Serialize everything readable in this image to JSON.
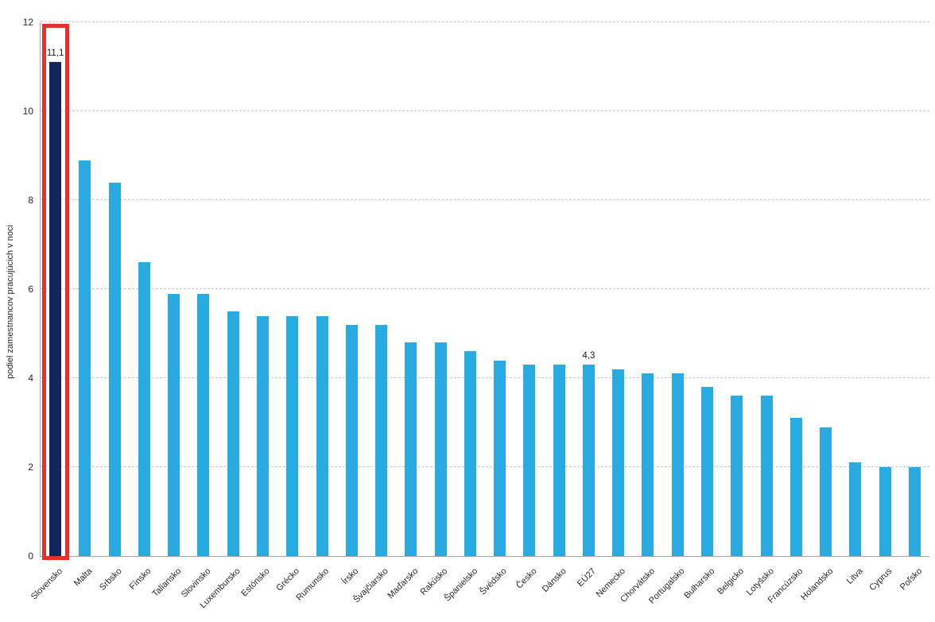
{
  "chart_data": {
    "type": "bar",
    "title": "",
    "xlabel": "",
    "ylabel": "podiel zamestnancov pracujúcich v noci",
    "ylim": [
      0,
      12
    ],
    "ytick_step": 2,
    "yticks": [
      "0",
      "2",
      "4",
      "6",
      "8",
      "10",
      "12"
    ],
    "grid": "horizontal-dashed",
    "legend": "none",
    "categories": [
      "Slovensko",
      "Malta",
      "Srbsko",
      "Fínsko",
      "Taliansko",
      "Slovinsko",
      "Luxembursko",
      "Estónsko",
      "Grécko",
      "Rumunsko",
      "Írsko",
      "Švajčiarsko",
      "Maďarsko",
      "Rakúsko",
      "Španielsko",
      "Švédsko",
      "Česko",
      "Dánsko",
      "EÚ27",
      "Nemecko",
      "Chorvátsko",
      "Portugalsko",
      "Bulharsko",
      "Belgicko",
      "Lotyšsko",
      "Francúzsko",
      "Holandsko",
      "Litva",
      "Cyprus",
      "Poľsko"
    ],
    "values": [
      11.1,
      8.9,
      8.4,
      6.6,
      5.9,
      5.9,
      5.5,
      5.4,
      5.4,
      5.4,
      5.2,
      5.2,
      4.8,
      4.8,
      4.6,
      4.4,
      4.3,
      4.3,
      4.3,
      4.2,
      4.1,
      4.1,
      3.8,
      3.6,
      3.6,
      3.1,
      2.9,
      2.1,
      2.0,
      2.0
    ],
    "annotations": [
      {
        "category": "Slovensko",
        "text": "11,1"
      },
      {
        "category": "EÚ27",
        "text": "4,3"
      }
    ],
    "highlight": {
      "category": "Slovensko",
      "style": "dark navy bar outlined with red rectangle spanning full plot height"
    },
    "colors": {
      "bar": "#29abe2",
      "highlight_bar": "#13265c",
      "highlight_box": "#e8302a",
      "gridline": "#c9c9c9",
      "axis": "#a6a6a6",
      "text": "#262626"
    }
  }
}
